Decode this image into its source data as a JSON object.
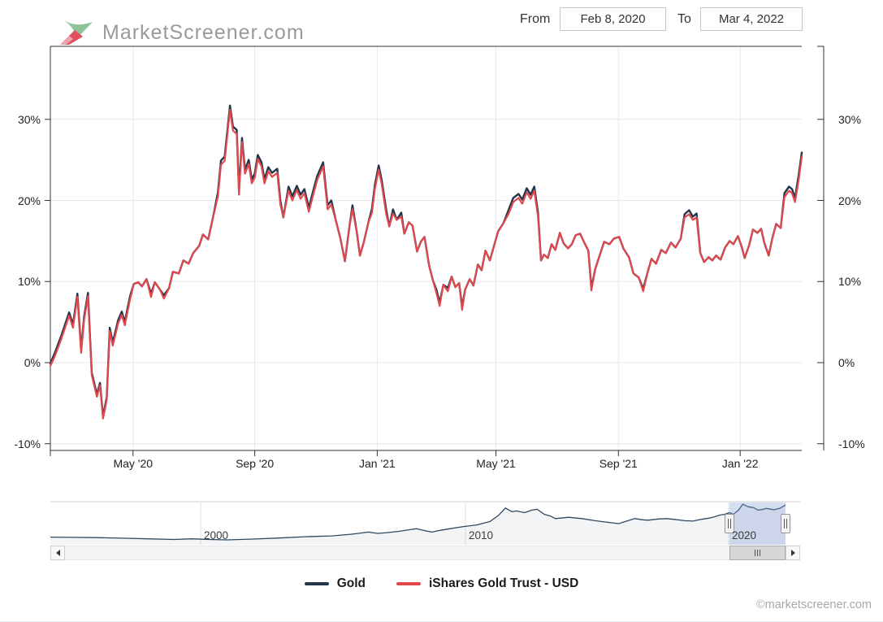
{
  "logo": {
    "text": "MarketScreener.com"
  },
  "date_range": {
    "from_label": "From",
    "from_value": "Feb 8, 2020",
    "to_label": "To",
    "to_value": "Mar 4, 2022"
  },
  "legend": [
    {
      "name": "Gold",
      "color": "#22364a"
    },
    {
      "name": "iShares Gold Trust - USD",
      "color": "#e0484d"
    }
  ],
  "copyright": "©marketscreener.com",
  "colors": {
    "gold_line": "#22364a",
    "ishares_line": "#e0484d",
    "grid": "#e8e8e8",
    "axis": "#333333",
    "navigator_line": "#2e4962",
    "navigator_fill": "rgba(46,73,98,0.06)",
    "selection_fill": "rgba(128,154,210,0.33)"
  },
  "chart_data": {
    "type": "line",
    "title": "",
    "y_unit": "%",
    "x_range": [
      "Feb 8, 2020",
      "Mar 4, 2022"
    ],
    "ylim": [
      -10.8,
      38.9
    ],
    "grid": true,
    "legend_position": "bottom",
    "y_ticks": [
      30,
      20,
      10,
      0,
      -10
    ],
    "x_ticks": [
      {
        "label": "May '20",
        "f": 0.11
      },
      {
        "label": "Sep '20",
        "f": 0.272
      },
      {
        "label": "Jan '21",
        "f": 0.435
      },
      {
        "label": "May '21",
        "f": 0.593
      },
      {
        "label": "Sep '21",
        "f": 0.756
      },
      {
        "label": "Jan '22",
        "f": 0.918
      }
    ],
    "series": [
      {
        "name": "Gold",
        "color": "#22364a"
      },
      {
        "name": "iShares Gold Trust - USD",
        "color": "#e0484d"
      }
    ],
    "points_format": "[fraction_of_date_range, gold_pct, ishares_pct]",
    "points": [
      [
        0.0,
        -0.1,
        -0.4
      ],
      [
        0.006,
        1.2,
        0.8
      ],
      [
        0.014,
        3.2,
        2.8
      ],
      [
        0.025,
        6.2,
        5.8
      ],
      [
        0.03,
        4.7,
        4.3
      ],
      [
        0.036,
        8.5,
        8.1
      ],
      [
        0.041,
        1.6,
        1.2
      ],
      [
        0.045,
        5.7,
        5.3
      ],
      [
        0.05,
        8.6,
        8.2
      ],
      [
        0.055,
        -1.2,
        -1.5
      ],
      [
        0.062,
        -3.9,
        -4.2
      ],
      [
        0.066,
        -2.5,
        -2.8
      ],
      [
        0.07,
        -6.6,
        -6.9
      ],
      [
        0.075,
        -4.3,
        -4.6
      ],
      [
        0.079,
        4.3,
        3.9
      ],
      [
        0.083,
        2.5,
        2.1
      ],
      [
        0.09,
        5.2,
        4.8
      ],
      [
        0.095,
        6.3,
        5.9
      ],
      [
        0.099,
        5.0,
        4.6
      ],
      [
        0.106,
        8.2,
        7.8
      ],
      [
        0.111,
        9.7,
        9.7
      ],
      [
        0.117,
        9.9,
        9.9
      ],
      [
        0.122,
        9.4,
        9.4
      ],
      [
        0.128,
        10.3,
        10.3
      ],
      [
        0.134,
        8.5,
        8.1
      ],
      [
        0.139,
        9.9,
        9.9
      ],
      [
        0.146,
        9.0,
        9.0
      ],
      [
        0.151,
        8.3,
        7.9
      ],
      [
        0.158,
        9.2,
        9.2
      ],
      [
        0.163,
        11.2,
        11.2
      ],
      [
        0.171,
        11.0,
        11.0
      ],
      [
        0.177,
        12.6,
        12.6
      ],
      [
        0.184,
        12.2,
        12.2
      ],
      [
        0.19,
        13.5,
        13.5
      ],
      [
        0.198,
        14.4,
        14.4
      ],
      [
        0.203,
        15.8,
        15.8
      ],
      [
        0.21,
        15.2,
        15.2
      ],
      [
        0.216,
        17.7,
        17.7
      ],
      [
        0.223,
        21.0,
        20.5
      ],
      [
        0.227,
        24.9,
        24.4
      ],
      [
        0.232,
        25.4,
        24.9
      ],
      [
        0.239,
        31.7,
        31.2
      ],
      [
        0.243,
        29.1,
        28.6
      ],
      [
        0.248,
        28.7,
        28.2
      ],
      [
        0.251,
        21.2,
        20.7
      ],
      [
        0.255,
        27.7,
        27.2
      ],
      [
        0.259,
        23.8,
        23.3
      ],
      [
        0.264,
        25.0,
        24.5
      ],
      [
        0.268,
        22.6,
        22.1
      ],
      [
        0.272,
        23.3,
        22.8
      ],
      [
        0.276,
        25.6,
        25.1
      ],
      [
        0.281,
        24.7,
        24.2
      ],
      [
        0.285,
        22.6,
        22.1
      ],
      [
        0.29,
        24.1,
        23.6
      ],
      [
        0.295,
        23.4,
        22.9
      ],
      [
        0.302,
        23.9,
        23.4
      ],
      [
        0.306,
        20.0,
        19.5
      ],
      [
        0.31,
        17.9,
        17.9
      ],
      [
        0.317,
        21.7,
        21.2
      ],
      [
        0.322,
        20.5,
        20.0
      ],
      [
        0.328,
        21.8,
        21.3
      ],
      [
        0.333,
        20.7,
        20.2
      ],
      [
        0.338,
        21.4,
        20.9
      ],
      [
        0.344,
        19.1,
        18.6
      ],
      [
        0.349,
        20.9,
        20.4
      ],
      [
        0.355,
        23.0,
        22.5
      ],
      [
        0.363,
        24.7,
        24.2
      ],
      [
        0.369,
        19.4,
        18.9
      ],
      [
        0.374,
        20.0,
        19.5
      ],
      [
        0.38,
        17.5,
        17.5
      ],
      [
        0.386,
        15.3,
        15.3
      ],
      [
        0.392,
        12.5,
        12.5
      ],
      [
        0.398,
        16.8,
        16.8
      ],
      [
        0.402,
        19.4,
        18.9
      ],
      [
        0.408,
        16.0,
        16.0
      ],
      [
        0.412,
        13.2,
        13.2
      ],
      [
        0.417,
        14.8,
        14.8
      ],
      [
        0.423,
        17.2,
        17.2
      ],
      [
        0.428,
        19.0,
        18.5
      ],
      [
        0.432,
        22.0,
        21.5
      ],
      [
        0.437,
        24.3,
        23.8
      ],
      [
        0.441,
        22.5,
        22.0
      ],
      [
        0.447,
        18.8,
        18.3
      ],
      [
        0.451,
        16.8,
        16.8
      ],
      [
        0.456,
        18.9,
        18.4
      ],
      [
        0.461,
        17.6,
        17.6
      ],
      [
        0.467,
        18.5,
        18.0
      ],
      [
        0.471,
        15.9,
        15.9
      ],
      [
        0.477,
        17.3,
        17.3
      ],
      [
        0.482,
        16.9,
        16.9
      ],
      [
        0.488,
        13.7,
        13.7
      ],
      [
        0.493,
        14.9,
        14.9
      ],
      [
        0.498,
        15.5,
        15.5
      ],
      [
        0.504,
        12.0,
        12.0
      ],
      [
        0.509,
        10.2,
        10.2
      ],
      [
        0.514,
        8.9,
        8.5
      ],
      [
        0.518,
        7.4,
        7.0
      ],
      [
        0.523,
        9.6,
        9.6
      ],
      [
        0.529,
        9.2,
        8.8
      ],
      [
        0.534,
        10.6,
        10.6
      ],
      [
        0.539,
        9.3,
        9.3
      ],
      [
        0.544,
        9.8,
        9.8
      ],
      [
        0.548,
        6.9,
        6.5
      ],
      [
        0.552,
        9.0,
        9.0
      ],
      [
        0.558,
        10.3,
        10.3
      ],
      [
        0.563,
        9.5,
        9.5
      ],
      [
        0.569,
        12.1,
        12.1
      ],
      [
        0.574,
        11.4,
        11.4
      ],
      [
        0.579,
        13.8,
        13.8
      ],
      [
        0.585,
        12.6,
        12.6
      ],
      [
        0.59,
        14.3,
        14.3
      ],
      [
        0.596,
        16.2,
        16.2
      ],
      [
        0.603,
        17.2,
        17.2
      ],
      [
        0.61,
        18.9,
        18.4
      ],
      [
        0.616,
        20.3,
        19.8
      ],
      [
        0.623,
        20.8,
        20.3
      ],
      [
        0.628,
        20.1,
        19.6
      ],
      [
        0.634,
        21.5,
        21.0
      ],
      [
        0.639,
        20.7,
        20.2
      ],
      [
        0.644,
        21.7,
        21.2
      ],
      [
        0.649,
        18.5,
        18.0
      ],
      [
        0.653,
        12.6,
        12.6
      ],
      [
        0.657,
        13.3,
        13.3
      ],
      [
        0.662,
        12.9,
        12.9
      ],
      [
        0.667,
        14.6,
        14.6
      ],
      [
        0.672,
        13.9,
        13.9
      ],
      [
        0.678,
        16.0,
        16.0
      ],
      [
        0.683,
        14.7,
        14.7
      ],
      [
        0.689,
        14.1,
        14.1
      ],
      [
        0.694,
        14.6,
        14.6
      ],
      [
        0.699,
        15.7,
        15.7
      ],
      [
        0.705,
        15.9,
        15.9
      ],
      [
        0.71,
        14.9,
        14.9
      ],
      [
        0.716,
        13.8,
        13.8
      ],
      [
        0.72,
        9.2,
        8.9
      ],
      [
        0.725,
        11.5,
        11.5
      ],
      [
        0.731,
        13.2,
        13.2
      ],
      [
        0.737,
        14.9,
        14.9
      ],
      [
        0.744,
        14.6,
        14.6
      ],
      [
        0.75,
        15.3,
        15.3
      ],
      [
        0.757,
        15.5,
        15.5
      ],
      [
        0.763,
        14.0,
        14.0
      ],
      [
        0.77,
        13.0,
        13.0
      ],
      [
        0.776,
        11.0,
        11.0
      ],
      [
        0.783,
        10.5,
        10.5
      ],
      [
        0.789,
        9.1,
        8.8
      ],
      [
        0.795,
        11.2,
        11.2
      ],
      [
        0.8,
        12.8,
        12.8
      ],
      [
        0.806,
        12.2,
        12.2
      ],
      [
        0.813,
        13.9,
        13.9
      ],
      [
        0.819,
        13.5,
        13.5
      ],
      [
        0.826,
        14.8,
        14.8
      ],
      [
        0.832,
        14.2,
        14.2
      ],
      [
        0.839,
        15.3,
        15.3
      ],
      [
        0.844,
        18.3,
        17.9
      ],
      [
        0.85,
        18.8,
        18.3
      ],
      [
        0.855,
        18.0,
        17.6
      ],
      [
        0.86,
        18.4,
        17.9
      ],
      [
        0.865,
        13.5,
        13.5
      ],
      [
        0.87,
        12.4,
        12.4
      ],
      [
        0.876,
        13.0,
        13.0
      ],
      [
        0.881,
        12.6,
        12.6
      ],
      [
        0.886,
        13.2,
        13.2
      ],
      [
        0.892,
        12.7,
        12.7
      ],
      [
        0.898,
        14.2,
        14.2
      ],
      [
        0.904,
        15.0,
        15.0
      ],
      [
        0.909,
        14.6,
        14.6
      ],
      [
        0.915,
        15.6,
        15.6
      ],
      [
        0.92,
        14.3,
        14.3
      ],
      [
        0.924,
        12.9,
        12.9
      ],
      [
        0.93,
        14.5,
        14.5
      ],
      [
        0.935,
        16.4,
        16.4
      ],
      [
        0.941,
        16.0,
        16.0
      ],
      [
        0.946,
        16.5,
        16.5
      ],
      [
        0.95,
        14.8,
        14.8
      ],
      [
        0.956,
        13.2,
        13.2
      ],
      [
        0.961,
        15.4,
        15.4
      ],
      [
        0.966,
        17.1,
        17.1
      ],
      [
        0.972,
        16.6,
        16.6
      ],
      [
        0.977,
        20.9,
        20.4
      ],
      [
        0.983,
        21.7,
        21.2
      ],
      [
        0.987,
        21.4,
        20.9
      ],
      [
        0.991,
        20.3,
        19.8
      ],
      [
        0.996,
        23.2,
        22.6
      ],
      [
        1.0,
        25.9,
        25.4
      ]
    ]
  },
  "navigator": {
    "description": "long-term gold price overview with selected range highlighted",
    "year_labels": [
      {
        "label": "2000",
        "f": 0.2044
      },
      {
        "label": "2010",
        "f": 0.5646
      },
      {
        "label": "2020",
        "f": 0.9227
      }
    ],
    "selection": {
      "start_f": 0.924,
      "end_f": 1.0
    },
    "points_format": "[fraction_of_navigator_data_width, height_fraction]",
    "points": [
      [
        0.0,
        0.18
      ],
      [
        0.03,
        0.175
      ],
      [
        0.061,
        0.17
      ],
      [
        0.097,
        0.155
      ],
      [
        0.132,
        0.14
      ],
      [
        0.168,
        0.125
      ],
      [
        0.193,
        0.14
      ],
      [
        0.215,
        0.125
      ],
      [
        0.24,
        0.115
      ],
      [
        0.276,
        0.135
      ],
      [
        0.311,
        0.16
      ],
      [
        0.347,
        0.19
      ],
      [
        0.383,
        0.21
      ],
      [
        0.41,
        0.25
      ],
      [
        0.433,
        0.3
      ],
      [
        0.445,
        0.27
      ],
      [
        0.455,
        0.28
      ],
      [
        0.475,
        0.32
      ],
      [
        0.498,
        0.38
      ],
      [
        0.51,
        0.33
      ],
      [
        0.519,
        0.3
      ],
      [
        0.53,
        0.34
      ],
      [
        0.544,
        0.38
      ],
      [
        0.562,
        0.43
      ],
      [
        0.58,
        0.47
      ],
      [
        0.598,
        0.55
      ],
      [
        0.61,
        0.7
      ],
      [
        0.619,
        0.87
      ],
      [
        0.628,
        0.78
      ],
      [
        0.634,
        0.8
      ],
      [
        0.645,
        0.76
      ],
      [
        0.655,
        0.82
      ],
      [
        0.662,
        0.84
      ],
      [
        0.672,
        0.72
      ],
      [
        0.68,
        0.68
      ],
      [
        0.687,
        0.62
      ],
      [
        0.705,
        0.65
      ],
      [
        0.723,
        0.62
      ],
      [
        0.741,
        0.57
      ],
      [
        0.758,
        0.53
      ],
      [
        0.773,
        0.5
      ],
      [
        0.784,
        0.56
      ],
      [
        0.795,
        0.62
      ],
      [
        0.806,
        0.59
      ],
      [
        0.813,
        0.58
      ],
      [
        0.827,
        0.61
      ],
      [
        0.838,
        0.62
      ],
      [
        0.849,
        0.6
      ],
      [
        0.863,
        0.57
      ],
      [
        0.874,
        0.56
      ],
      [
        0.885,
        0.6
      ],
      [
        0.896,
        0.63
      ],
      [
        0.903,
        0.66
      ],
      [
        0.91,
        0.7
      ],
      [
        0.917,
        0.72
      ],
      [
        0.924,
        0.76
      ],
      [
        0.929,
        0.72
      ],
      [
        0.936,
        0.82
      ],
      [
        0.942,
        0.96
      ],
      [
        0.949,
        0.9
      ],
      [
        0.956,
        0.88
      ],
      [
        0.963,
        0.82
      ],
      [
        0.97,
        0.84
      ],
      [
        0.974,
        0.86
      ],
      [
        0.98,
        0.84
      ],
      [
        0.985,
        0.83
      ],
      [
        0.992,
        0.86
      ],
      [
        1.0,
        0.94
      ]
    ]
  }
}
